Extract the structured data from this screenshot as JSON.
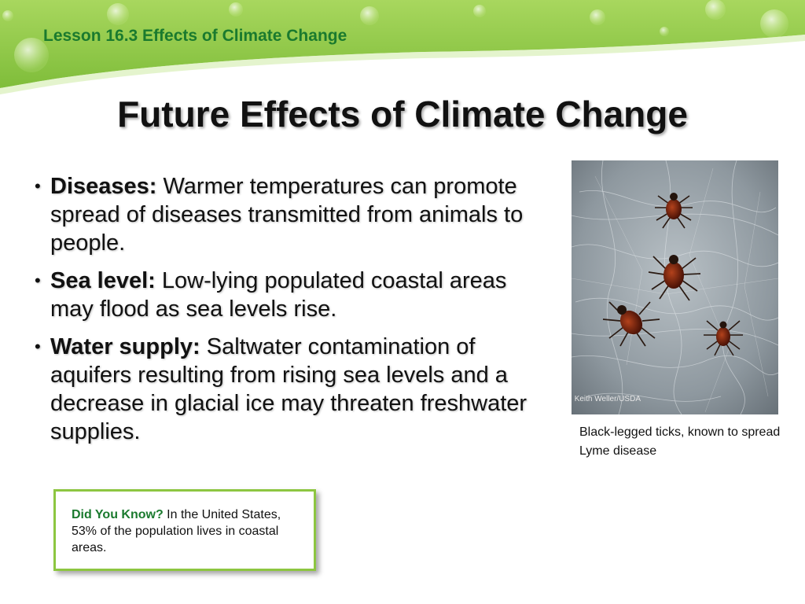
{
  "header": {
    "lesson_title": "Lesson 16.3 Effects of Climate Change"
  },
  "title": "Future Effects of Climate Change",
  "bullets": [
    {
      "term": "Diseases:",
      "text": " Warmer temperatures can promote spread of diseases transmitted from animals to people."
    },
    {
      "term": "Sea level:",
      "text": " Low-lying populated coastal areas may flood as sea levels rise."
    },
    {
      "term": "Water supply:",
      "text": " Saltwater contamination of aquifers resulting from rising sea levels and a decrease in glacial ice may threaten freshwater supplies."
    }
  ],
  "figure": {
    "credit": "Keith Weller/USDA",
    "caption": "Black-legged ticks, known to spread Lyme disease"
  },
  "callout": {
    "label": "Did You Know?",
    "text": " In the United States, 53% of the population lives in coastal areas."
  },
  "colors": {
    "header_green": "#8dc641",
    "lesson_text": "#1a7a2e",
    "callout_border": "#8dc641"
  }
}
